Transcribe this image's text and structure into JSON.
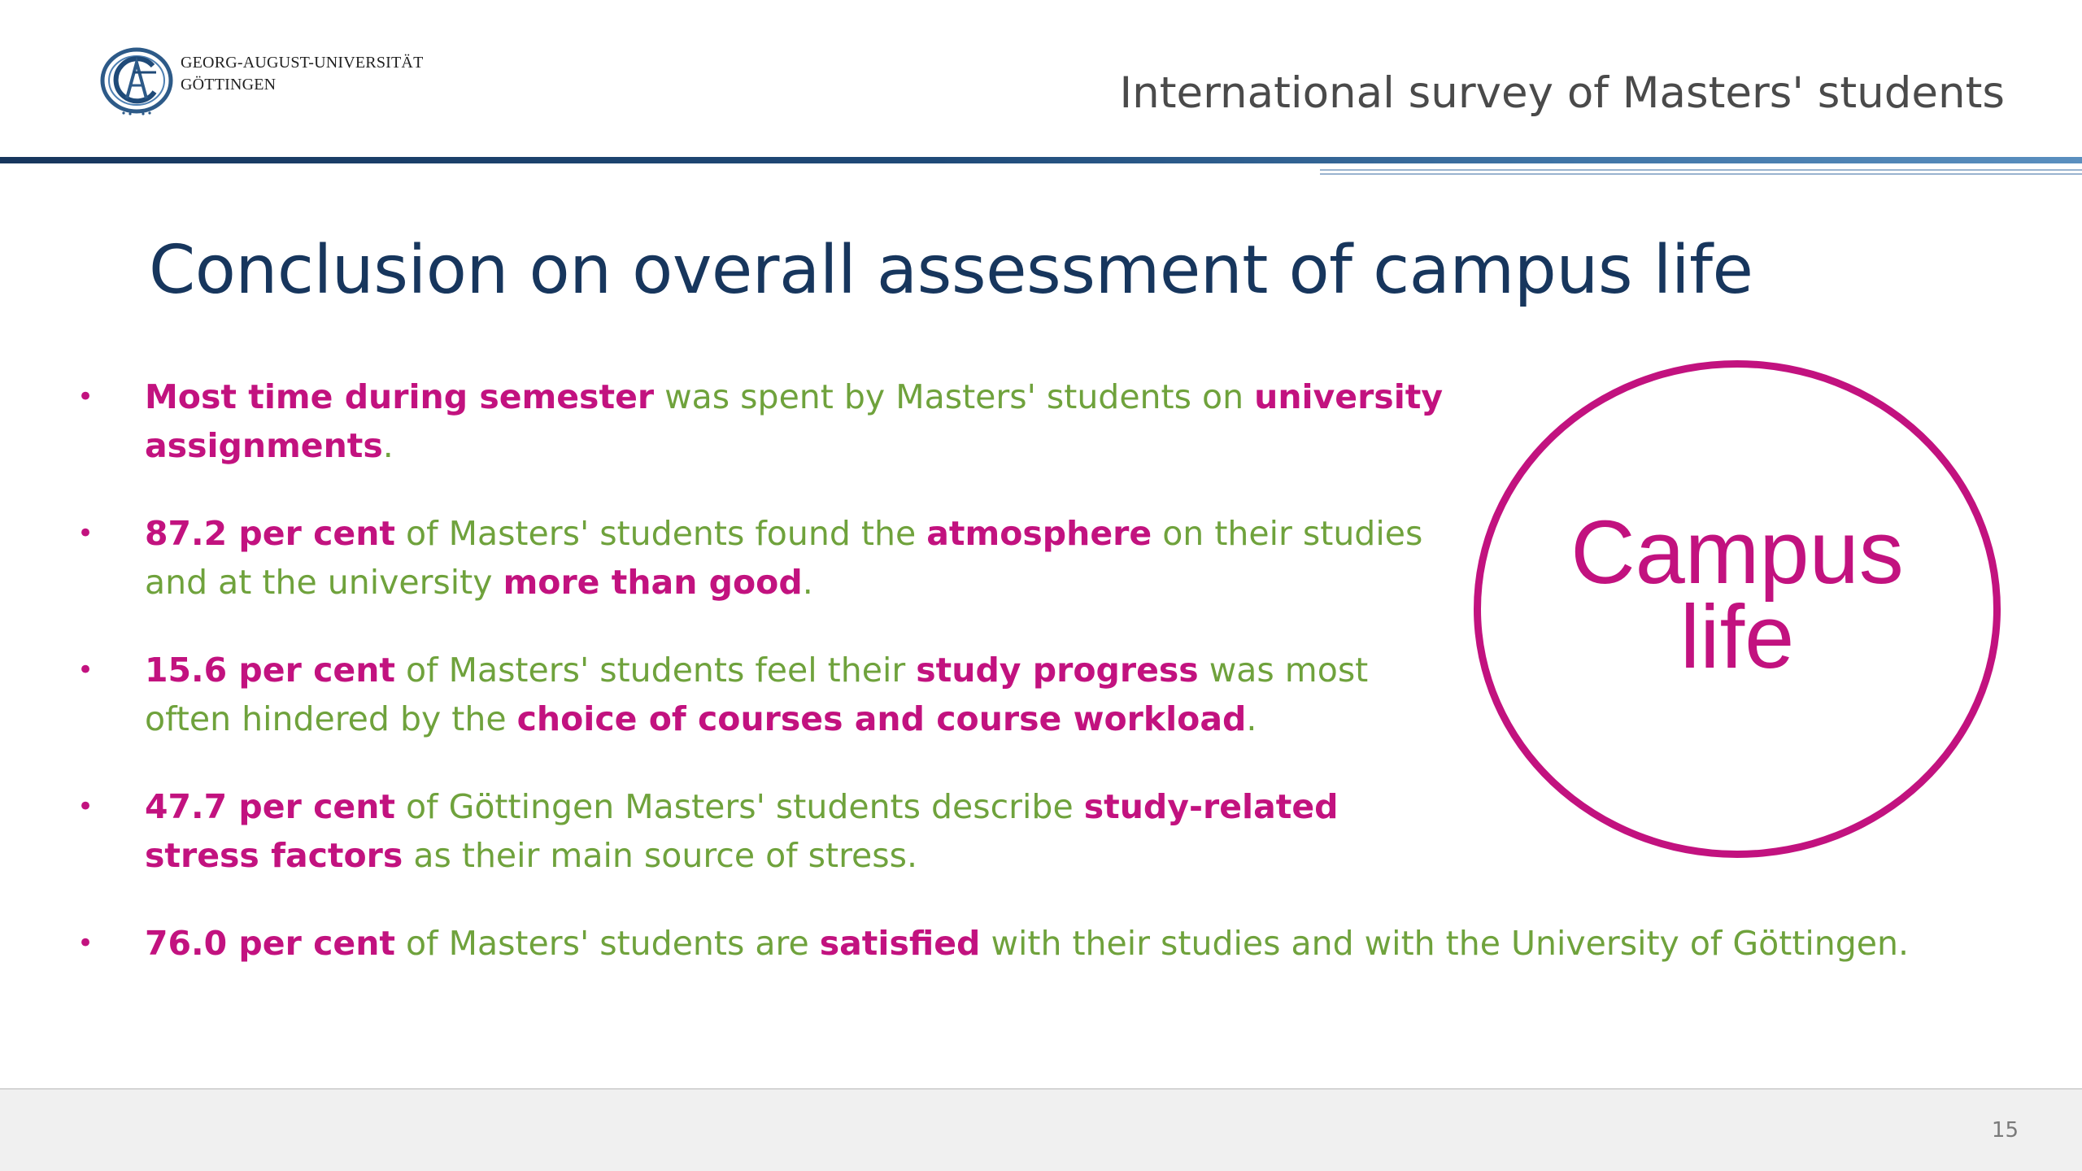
{
  "header": {
    "university_line1": "GEORG-AUGUST-UNIVERSITÄT",
    "university_line2": "GÖTTINGEN",
    "survey_title": "International survey of Masters' students"
  },
  "slide": {
    "title": "Conclusion on overall assessment of campus life"
  },
  "bullets": [
    {
      "parts": [
        {
          "text": "Most time during semester",
          "emph": true
        },
        {
          "text": " was spent by Masters' students on ",
          "emph": false
        },
        {
          "text": "university assignments",
          "emph": true
        },
        {
          "text": ".",
          "emph": false
        }
      ]
    },
    {
      "parts": [
        {
          "text": "87.2 per cent",
          "emph": true
        },
        {
          "text": " of Masters' students found the ",
          "emph": false
        },
        {
          "text": "atmosphere",
          "emph": true
        },
        {
          "text": " on their studies and at the university ",
          "emph": false
        },
        {
          "text": "more than good",
          "emph": true
        },
        {
          "text": ".",
          "emph": false
        }
      ]
    },
    {
      "parts": [
        {
          "text": "15.6 per cent",
          "emph": true
        },
        {
          "text": " of Masters' students feel their ",
          "emph": false
        },
        {
          "text": "study progress",
          "emph": true
        },
        {
          "text": " was most often hindered by the ",
          "emph": false
        },
        {
          "text": "choice of courses and course workload",
          "emph": true
        },
        {
          "text": ".",
          "emph": false
        }
      ]
    },
    {
      "parts": [
        {
          "text": "47.7 per cent",
          "emph": true
        },
        {
          "text": " of Göttingen Masters' students describe ",
          "emph": false
        },
        {
          "text": "study-related stress factors",
          "emph": true
        },
        {
          "text": " as their main source of stress.",
          "emph": false
        }
      ]
    },
    {
      "parts": [
        {
          "text": "76.0 per cent",
          "emph": true
        },
        {
          "text": " of Masters' students are ",
          "emph": false
        },
        {
          "text": "satisfied",
          "emph": true
        },
        {
          "text": " with their studies and with the University of Göttingen.",
          "emph": false
        }
      ]
    }
  ],
  "circle": {
    "line1": "Campus",
    "line2": "life"
  },
  "footer": {
    "page_number": "15"
  },
  "colors": {
    "magenta": "#c2127f",
    "green": "#6fa23c",
    "navy": "#17365d"
  },
  "icons": {
    "logo": "university-seal-logo",
    "bullet": "bullet-dot"
  }
}
